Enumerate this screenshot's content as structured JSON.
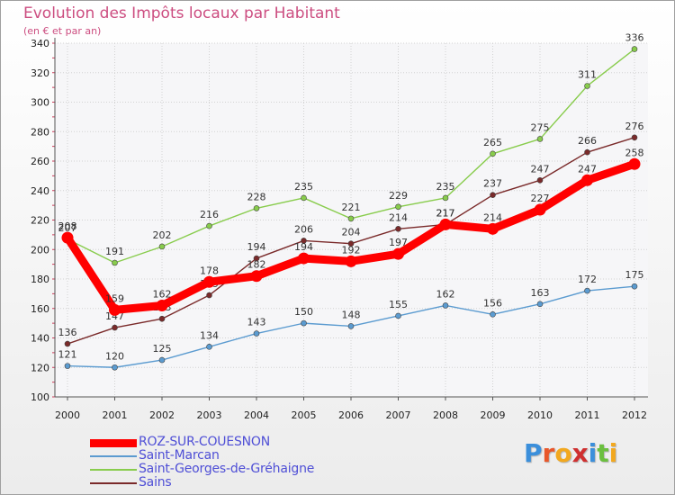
{
  "title": "Evolution des Impôts locaux par Habitant",
  "subtitle": "(en € et par an)",
  "logo": {
    "letters": [
      {
        "char": "P",
        "color": "#3b8fdb"
      },
      {
        "char": "r",
        "color": "#e8572a"
      },
      {
        "char": "o",
        "color": "#f2a81f"
      },
      {
        "char": "x",
        "color": "#cf2f2f"
      },
      {
        "char": "i",
        "color": "#3b8fdb"
      },
      {
        "char": "t",
        "color": "#6bbf3f"
      },
      {
        "char": "i",
        "color": "#f2a81f"
      }
    ]
  },
  "chart_data": {
    "type": "line",
    "title": "Evolution des Impôts locaux par Habitant",
    "subtitle": "(en € et par an)",
    "xlabel": "",
    "ylabel": "",
    "x": [
      "2000",
      "2001",
      "2002",
      "2003",
      "2004",
      "2005",
      "2006",
      "2007",
      "2008",
      "2009",
      "2010",
      "2011",
      "2012"
    ],
    "ylim": [
      100,
      340
    ],
    "yticks": [
      100,
      120,
      140,
      160,
      180,
      200,
      220,
      240,
      260,
      280,
      300,
      320,
      340
    ],
    "grid": true,
    "legend": "bottom-left",
    "series": [
      {
        "name": "ROZ-SUR-COUESNON",
        "color": "#ff0000",
        "values": [
          208,
          159,
          162,
          178,
          182,
          194,
          192,
          197,
          217,
          214,
          227,
          247,
          258
        ],
        "thick": true
      },
      {
        "name": "Saint-Marcan",
        "color": "#5b9bd0",
        "values": [
          121,
          120,
          125,
          134,
          143,
          150,
          148,
          155,
          162,
          156,
          163,
          172,
          175
        ],
        "thick": false
      },
      {
        "name": "Saint-Georges-de-Gréhaigne",
        "color": "#88cc4c",
        "values": [
          207,
          191,
          202,
          216,
          228,
          235,
          221,
          229,
          235,
          265,
          275,
          311,
          336
        ],
        "thick": false
      },
      {
        "name": "Sains",
        "color": "#7a2a2a",
        "values": [
          136,
          147,
          153,
          169,
          194,
          206,
          204,
          214,
          217,
          237,
          247,
          266,
          276
        ],
        "thick": false
      }
    ]
  }
}
